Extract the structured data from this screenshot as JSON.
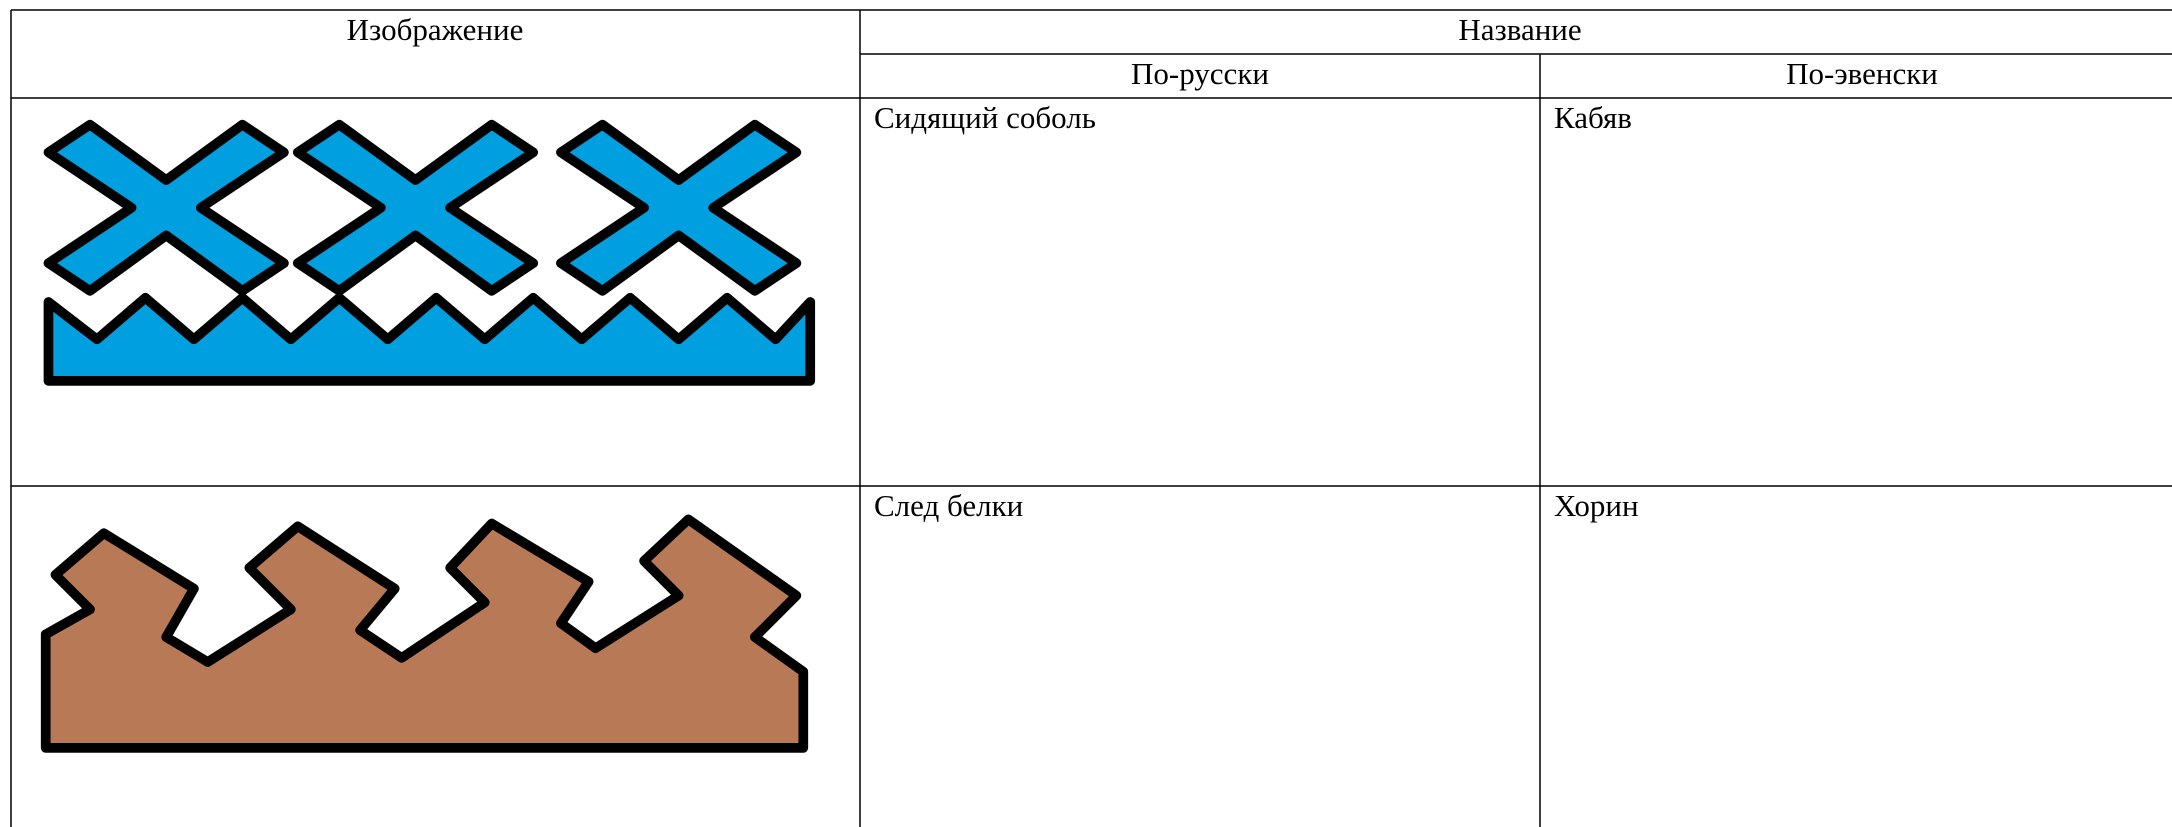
{
  "table": {
    "header": {
      "image": "Изображение",
      "name": "Название",
      "russian": "По-русски",
      "even": "По-эвенски"
    },
    "rows": [
      {
        "russian": "Сидящий соболь",
        "even": "Кабяв"
      },
      {
        "russian": "След белки",
        "even": "Хорин"
      }
    ]
  }
}
